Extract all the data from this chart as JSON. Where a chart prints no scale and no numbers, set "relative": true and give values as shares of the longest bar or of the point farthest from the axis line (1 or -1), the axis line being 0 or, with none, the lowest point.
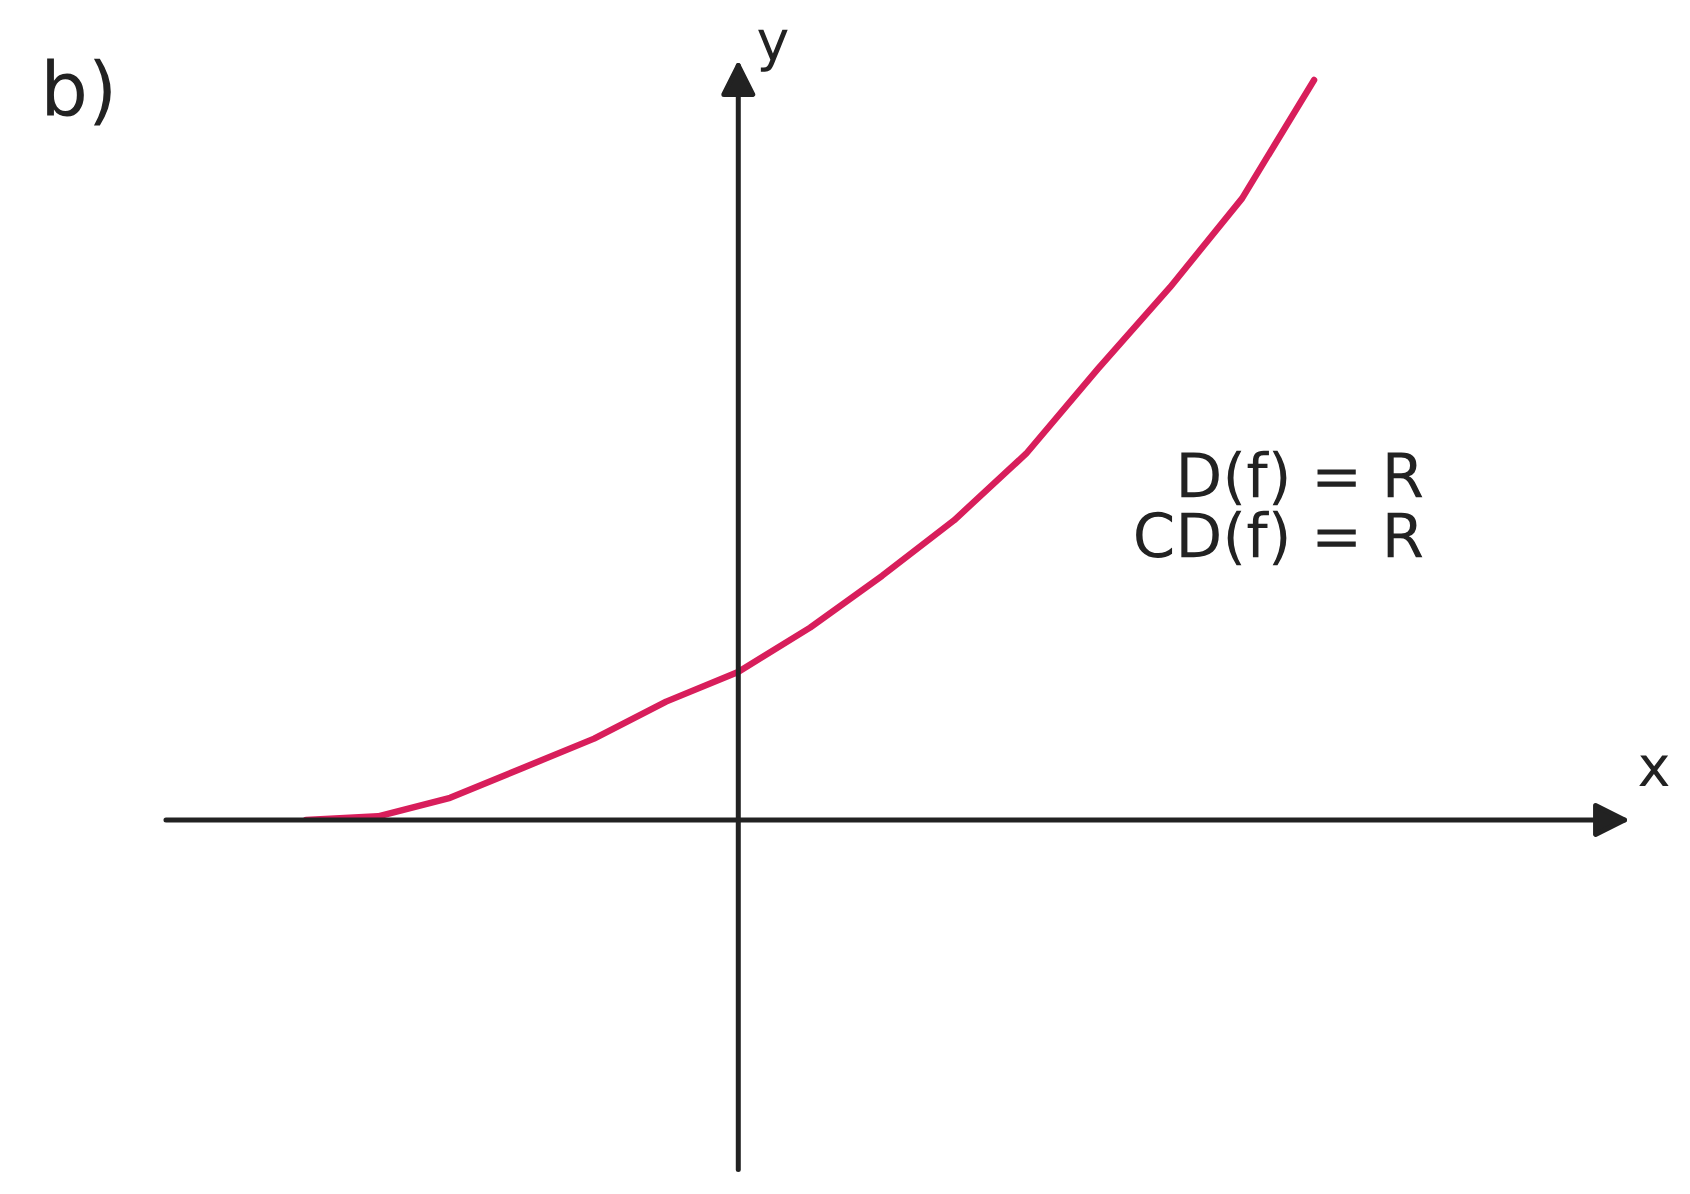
{
  "chart_data": {
    "type": "line",
    "title": "b)",
    "ylabel": "y",
    "relative": true,
    "categories": [
      null,
      null,
      null,
      null,
      null,
      null,
      null,
      null,
      null,
      null,
      null,
      null,
      null,
      null,
      null
    ],
    "series": [
      {
        "color": "#d81e5b",
        "values": [
          0,
          0.005,
          0.03,
          0.07,
          0.11,
          0.16,
          0.2,
          0.26,
          0.33,
          0.405,
          0.495,
          0.61,
          0.72,
          0.84,
          1
        ]
      }
    ],
    "annotations": [
      "D(f) = R",
      "CD(f) = R",
      "x"
    ]
  }
}
